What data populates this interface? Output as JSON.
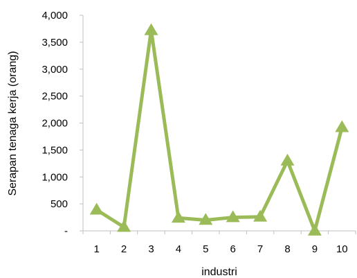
{
  "chart_data": {
    "type": "line",
    "title": "",
    "xlabel": "industri",
    "ylabel": "Serapan tenaga kerja (orang)",
    "categories": [
      "1",
      "2",
      "3",
      "4",
      "5",
      "6",
      "7",
      "8",
      "9",
      "10"
    ],
    "series": [
      {
        "values": [
          390,
          70,
          3720,
          240,
          200,
          250,
          260,
          1300,
          0,
          1920
        ],
        "color": "#9bbb59",
        "marker": "triangle"
      }
    ],
    "ylim": [
      0,
      4000
    ],
    "yticks": [
      0,
      500,
      1000,
      1500,
      2000,
      2500,
      3000,
      3500,
      4000
    ],
    "ytick_labels": [
      "-",
      "500",
      "1,000",
      "1,500",
      "2,000",
      "2,500",
      "3,000",
      "3,500",
      "4,000"
    ],
    "grid": false,
    "legend": "none",
    "axis_color": "#bfbfbf"
  }
}
